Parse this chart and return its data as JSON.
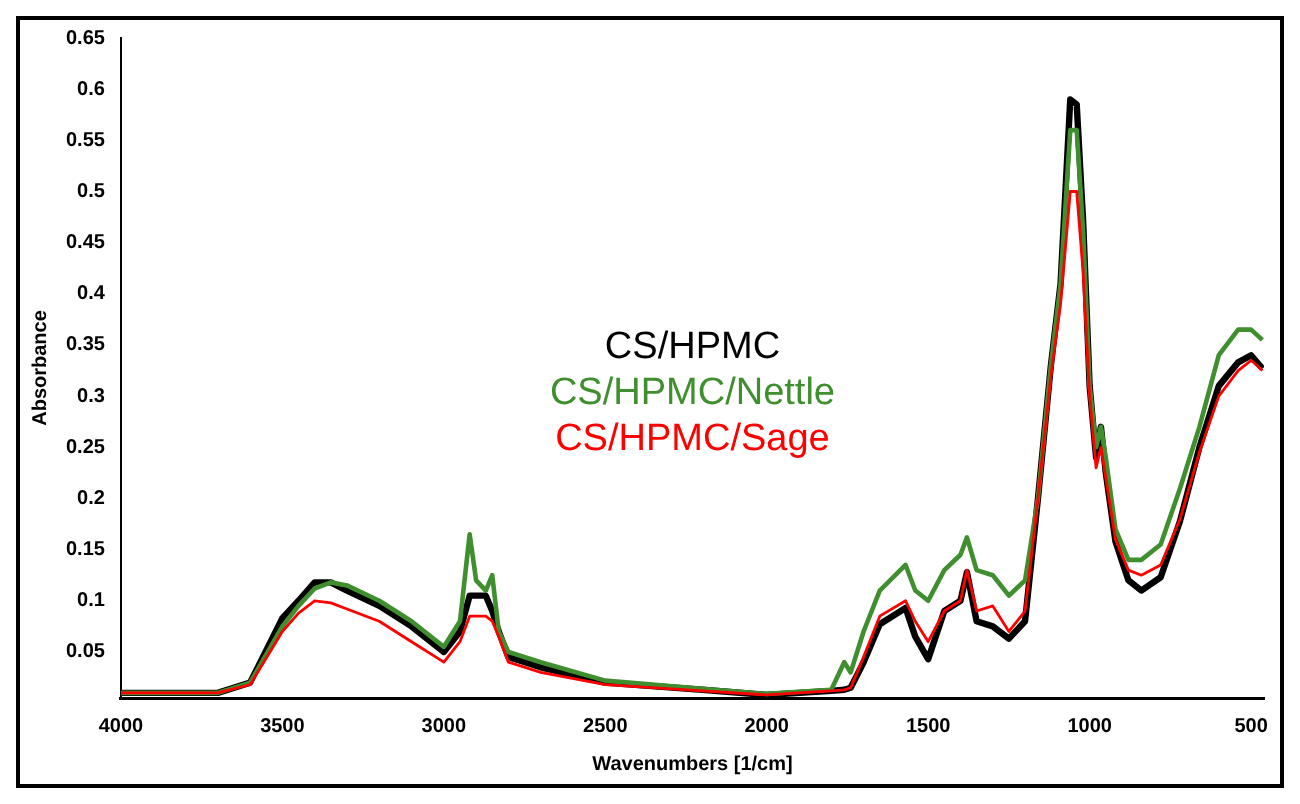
{
  "chart_data": {
    "type": "line",
    "xlabel": "Wavenumbers [1/cm]",
    "ylabel": "Absorbance",
    "x": [
      4000,
      3700,
      3600,
      3500,
      3450,
      3400,
      3350,
      3300,
      3200,
      3100,
      3000,
      2950,
      2920,
      2900,
      2870,
      2850,
      2830,
      2800,
      2700,
      2500,
      2200,
      2000,
      1800,
      1760,
      1740,
      1700,
      1650,
      1570,
      1540,
      1500,
      1450,
      1400,
      1380,
      1350,
      1300,
      1250,
      1200,
      1160,
      1120,
      1090,
      1060,
      1040,
      1020,
      1000,
      980,
      965,
      950,
      920,
      880,
      840,
      780,
      720,
      660,
      600,
      540,
      500,
      465
    ],
    "series": [
      {
        "name": "CS/HPMC",
        "color": "#000000",
        "values": [
          0.01,
          0.01,
          0.02,
          0.083,
          0.1,
          0.118,
          0.118,
          0.11,
          0.095,
          0.075,
          0.05,
          0.07,
          0.105,
          0.105,
          0.105,
          0.09,
          0.07,
          0.045,
          0.035,
          0.02,
          0.013,
          0.008,
          0.012,
          0.013,
          0.015,
          0.04,
          0.077,
          0.093,
          0.065,
          0.043,
          0.09,
          0.1,
          0.128,
          0.08,
          0.075,
          0.063,
          0.08,
          0.2,
          0.33,
          0.41,
          0.59,
          0.585,
          0.47,
          0.31,
          0.24,
          0.27,
          0.225,
          0.158,
          0.12,
          0.11,
          0.123,
          0.178,
          0.25,
          0.31,
          0.333,
          0.34,
          0.327
        ]
      },
      {
        "name": "CS/HPMC/Nettle",
        "color": "#3f8f2f",
        "values": [
          0.01,
          0.01,
          0.02,
          0.075,
          0.095,
          0.112,
          0.118,
          0.115,
          0.1,
          0.08,
          0.055,
          0.08,
          0.165,
          0.12,
          0.11,
          0.125,
          0.07,
          0.05,
          0.04,
          0.022,
          0.014,
          0.009,
          0.013,
          0.04,
          0.03,
          0.07,
          0.11,
          0.135,
          0.11,
          0.1,
          0.13,
          0.145,
          0.162,
          0.13,
          0.125,
          0.105,
          0.12,
          0.2,
          0.33,
          0.41,
          0.56,
          0.56,
          0.46,
          0.31,
          0.25,
          0.27,
          0.24,
          0.17,
          0.14,
          0.14,
          0.155,
          0.21,
          0.27,
          0.34,
          0.365,
          0.365,
          0.355
        ]
      },
      {
        "name": "CS/HPMC/Sage",
        "color": "#ff0000",
        "values": [
          0.01,
          0.01,
          0.018,
          0.07,
          0.088,
          0.1,
          0.098,
          0.092,
          0.08,
          0.06,
          0.04,
          0.06,
          0.085,
          0.085,
          0.085,
          0.08,
          0.065,
          0.04,
          0.03,
          0.018,
          0.012,
          0.008,
          0.012,
          0.013,
          0.015,
          0.045,
          0.085,
          0.1,
          0.08,
          0.06,
          0.09,
          0.1,
          0.13,
          0.09,
          0.095,
          0.07,
          0.09,
          0.2,
          0.32,
          0.39,
          0.5,
          0.5,
          0.42,
          0.3,
          0.23,
          0.25,
          0.22,
          0.16,
          0.13,
          0.125,
          0.135,
          0.18,
          0.245,
          0.3,
          0.325,
          0.335,
          0.325
        ]
      }
    ],
    "xlim": [
      4000,
      460
    ],
    "xticks": [
      4000,
      3500,
      3000,
      2500,
      2000,
      1500,
      1000,
      500
    ],
    "ylim": [
      0.005,
      0.65
    ],
    "yticks": [
      0.05,
      0.1,
      0.15,
      0.2,
      0.25,
      0.3,
      0.35,
      0.4,
      0.45,
      0.5,
      0.55,
      0.6,
      0.65
    ],
    "grid": false,
    "legend": "center",
    "marker": "none",
    "line_style": "solid"
  }
}
